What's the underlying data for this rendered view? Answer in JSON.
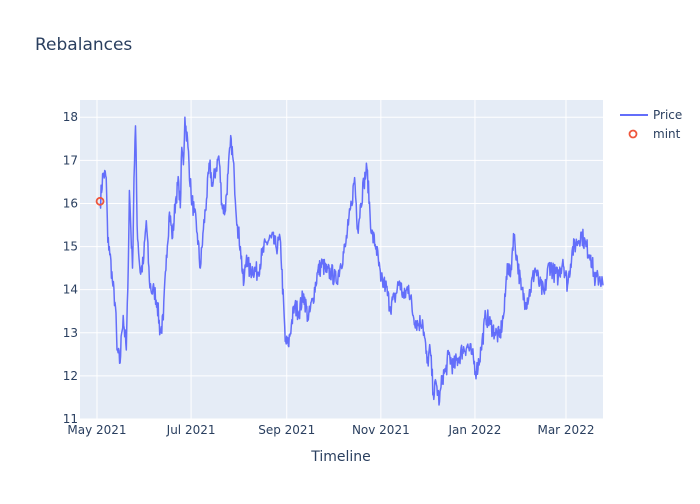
{
  "chart_data": {
    "type": "line",
    "title": "Rebalances",
    "xlabel": "Timeline",
    "ylabel": "",
    "ylim": [
      11,
      18.4
    ],
    "xlim": [
      "2021-04-20",
      "2022-03-25"
    ],
    "x_ticks": [
      {
        "date": "2021-05-01",
        "label": "May 2021"
      },
      {
        "date": "2021-07-01",
        "label": "Jul 2021"
      },
      {
        "date": "2021-09-01",
        "label": "Sep 2021"
      },
      {
        "date": "2021-11-01",
        "label": "Nov 2021"
      },
      {
        "date": "2022-01-01",
        "label": "Jan 2022"
      },
      {
        "date": "2022-03-01",
        "label": "Mar 2022"
      }
    ],
    "y_ticks": [
      11,
      12,
      13,
      14,
      15,
      16,
      17,
      18
    ],
    "grid": true,
    "legend_position": "top-right",
    "series": [
      {
        "name": "Price",
        "mode": "lines",
        "color": "#636efa",
        "x": [
          "2021-05-03",
          "2021-05-05",
          "2021-05-07",
          "2021-05-08",
          "2021-05-09",
          "2021-05-11",
          "2021-05-13",
          "2021-05-14",
          "2021-05-16",
          "2021-05-17",
          "2021-05-18",
          "2021-05-20",
          "2021-05-21",
          "2021-05-22",
          "2021-05-24",
          "2021-05-25",
          "2021-05-26",
          "2021-05-27",
          "2021-05-29",
          "2021-05-31",
          "2021-06-02",
          "2021-06-04",
          "2021-06-06",
          "2021-06-07",
          "2021-06-09",
          "2021-06-11",
          "2021-06-13",
          "2021-06-15",
          "2021-06-17",
          "2021-06-19",
          "2021-06-21",
          "2021-06-23",
          "2021-06-24",
          "2021-06-25",
          "2021-06-26",
          "2021-06-27",
          "2021-06-29",
          "2021-07-01",
          "2021-07-03",
          "2021-07-05",
          "2021-07-07",
          "2021-07-09",
          "2021-07-11",
          "2021-07-13",
          "2021-07-15",
          "2021-07-17",
          "2021-07-19",
          "2021-07-21",
          "2021-07-23",
          "2021-07-25",
          "2021-07-27",
          "2021-07-29",
          "2021-07-31",
          "2021-08-02",
          "2021-08-04",
          "2021-08-06",
          "2021-08-08",
          "2021-08-10",
          "2021-08-13",
          "2021-08-16",
          "2021-08-19",
          "2021-08-22",
          "2021-08-25",
          "2021-08-28",
          "2021-08-31",
          "2021-09-02",
          "2021-09-04",
          "2021-09-06",
          "2021-09-09",
          "2021-09-12",
          "2021-09-15",
          "2021-09-18",
          "2021-09-21",
          "2021-09-24",
          "2021-09-27",
          "2021-09-30",
          "2021-10-03",
          "2021-10-06",
          "2021-10-09",
          "2021-10-11",
          "2021-10-13",
          "2021-10-15",
          "2021-10-17",
          "2021-10-19",
          "2021-10-21",
          "2021-10-23",
          "2021-10-26",
          "2021-10-29",
          "2021-11-01",
          "2021-11-04",
          "2021-11-07",
          "2021-11-10",
          "2021-11-13",
          "2021-11-16",
          "2021-11-19",
          "2021-11-22",
          "2021-11-25",
          "2021-11-28",
          "2021-12-01",
          "2021-12-03",
          "2021-12-05",
          "2021-12-07",
          "2021-12-09",
          "2021-12-11",
          "2021-12-13",
          "2021-12-15",
          "2021-12-18",
          "2021-12-21",
          "2021-12-24",
          "2021-12-27",
          "2021-12-30",
          "2022-01-02",
          "2022-01-05",
          "2022-01-08",
          "2022-01-11",
          "2022-01-14",
          "2022-01-17",
          "2022-01-20",
          "2022-01-22",
          "2022-01-24",
          "2022-01-26",
          "2022-01-28",
          "2022-01-31",
          "2022-02-03",
          "2022-02-06",
          "2022-02-09",
          "2022-02-12",
          "2022-02-15",
          "2022-02-18",
          "2022-02-21",
          "2022-02-24",
          "2022-02-27",
          "2022-03-02",
          "2022-03-05",
          "2022-03-08",
          "2022-03-11",
          "2022-03-14",
          "2022-03-17",
          "2022-03-20",
          "2022-03-23",
          "2022-03-25"
        ],
        "y": [
          16.0,
          16.7,
          16.6,
          15.1,
          15.0,
          14.2,
          13.6,
          12.6,
          12.3,
          13.0,
          13.4,
          12.6,
          14.0,
          16.3,
          14.5,
          16.6,
          17.8,
          15.5,
          14.4,
          14.6,
          15.6,
          14.2,
          13.9,
          14.0,
          13.7,
          13.0,
          13.3,
          14.8,
          15.8,
          15.2,
          16.1,
          16.5,
          15.9,
          17.3,
          16.9,
          18.0,
          17.3,
          16.2,
          15.8,
          15.3,
          14.5,
          15.4,
          16.1,
          16.9,
          16.4,
          16.8,
          17.1,
          16.0,
          15.8,
          16.7,
          17.5,
          16.6,
          15.5,
          15.0,
          14.1,
          14.8,
          14.4,
          14.5,
          14.4,
          14.8,
          15.1,
          15.2,
          15.0,
          15.1,
          12.8,
          12.7,
          13.2,
          13.6,
          13.5,
          13.9,
          13.3,
          13.8,
          14.4,
          14.6,
          14.4,
          14.4,
          14.2,
          14.6,
          15.0,
          15.5,
          16.0,
          16.6,
          15.4,
          16.0,
          16.5,
          16.8,
          15.3,
          15.0,
          14.2,
          14.1,
          13.6,
          13.8,
          14.2,
          13.8,
          14.1,
          13.4,
          13.2,
          13.3,
          12.3,
          12.6,
          11.6,
          11.8,
          11.4,
          12.0,
          12.1,
          12.5,
          12.2,
          12.4,
          12.6,
          12.7,
          12.5,
          12.1,
          12.6,
          13.4,
          13.2,
          13.0,
          12.9,
          13.5,
          14.6,
          14.3,
          15.3,
          14.8,
          14.0,
          13.7,
          14.0,
          14.5,
          14.1,
          13.9,
          14.6,
          14.4,
          14.3,
          14.7,
          14.1,
          14.9,
          15.1,
          15.3,
          15.0,
          14.8,
          14.2,
          14.3,
          14.1
        ]
      },
      {
        "name": "mint",
        "mode": "markers",
        "color": "#ef553b",
        "x": [
          "2021-05-03"
        ],
        "y": [
          16.05
        ]
      }
    ]
  }
}
